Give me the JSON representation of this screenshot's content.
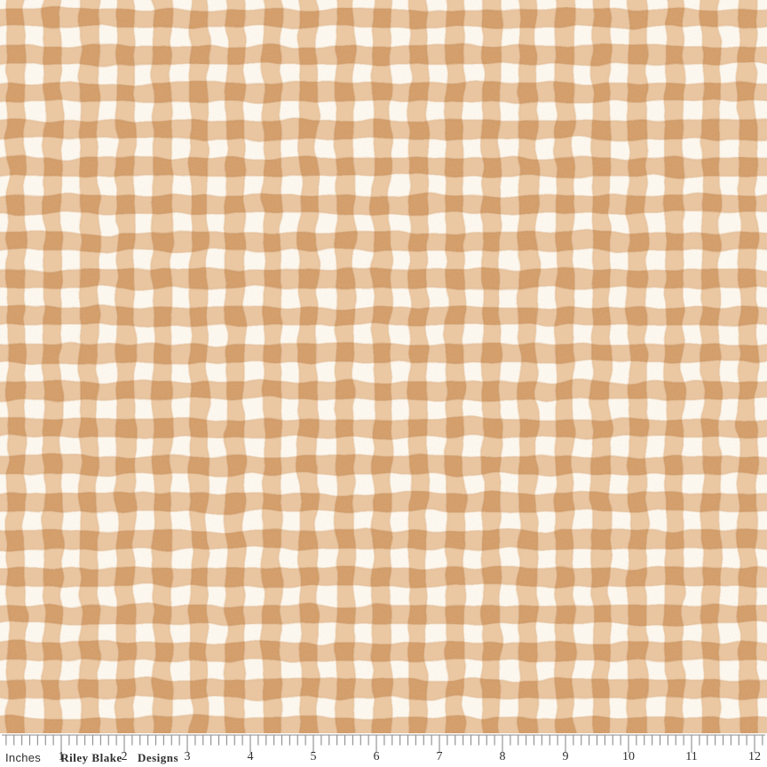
{
  "fabric": {
    "pattern_name": "gingham-check",
    "colors": {
      "cream": "#fdf9f1",
      "stripe_vertical": "#ebc8a2",
      "stripe_horizontal": "#e9c5a0",
      "check_dark": "#d39d69",
      "check_edge": "#c08550",
      "stripe_edge": "#d8a97a",
      "grain_tint": "#c79e74"
    }
  },
  "ruler": {
    "unit_label": "Inches",
    "brand_left": "Riley Blake",
    "brand_right": "Designs",
    "inch_numbers": [
      "1",
      "2",
      "3",
      "4",
      "5",
      "6",
      "7",
      "8",
      "9",
      "10",
      "11",
      "12"
    ],
    "ticks_per_inch": 8,
    "colors": {
      "background": "#ffffff",
      "tick": "#8c8c8c",
      "text": "#2e2e2e"
    }
  }
}
